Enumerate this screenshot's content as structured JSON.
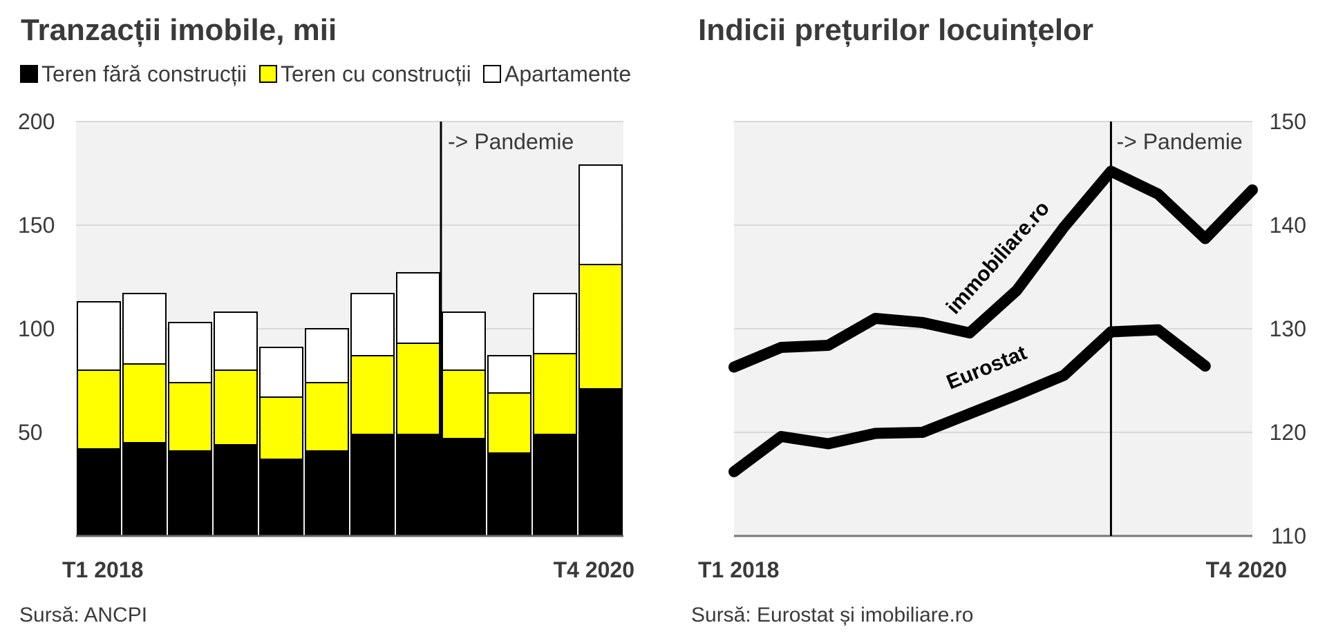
{
  "chart_data": [
    {
      "type": "bar",
      "stacked": true,
      "title": "Tranzacții imobile, mii",
      "categories": [
        "T1 2018",
        "T2 2018",
        "T3 2018",
        "T4 2018",
        "T1 2019",
        "T2 2019",
        "T3 2019",
        "T4 2019",
        "T1 2020",
        "T2 2020",
        "T3 2020",
        "T4 2020"
      ],
      "x_tick_labels": [
        "T1 2018",
        "T4 2020"
      ],
      "y_ticks": [
        50,
        100,
        150,
        200
      ],
      "ylim": [
        0,
        200
      ],
      "series": [
        {
          "name": "Teren fără construcții",
          "color": "#000000",
          "values": [
            42,
            45,
            41,
            44,
            37,
            41,
            49,
            49,
            47,
            40,
            49,
            71
          ]
        },
        {
          "name": "Teren cu construcții",
          "color": "#ffff00",
          "values": [
            38,
            38,
            33,
            36,
            30,
            33,
            38,
            44,
            33,
            29,
            39,
            60
          ]
        },
        {
          "name": "Apartamente",
          "color": "#ffffff",
          "values": [
            33,
            34,
            29,
            28,
            24,
            26,
            30,
            34,
            28,
            18,
            29,
            48
          ]
        }
      ],
      "annotation": {
        "label": "-> Pandemie",
        "between": [
          "T4 2019",
          "T1 2020"
        ]
      },
      "source": "Sursă: ANCPI",
      "plot_background": "#f2f2f2",
      "grid": true
    },
    {
      "type": "line",
      "title": "Indicii prețurilor locuințelor",
      "x": [
        "T1 2018",
        "T2 2018",
        "T3 2018",
        "T4 2018",
        "T1 2019",
        "T2 2019",
        "T3 2019",
        "T4 2019",
        "T1 2020",
        "T2 2020",
        "T3 2020",
        "T4 2020"
      ],
      "x_tick_labels": [
        "T1 2018",
        "T4 2020"
      ],
      "y_ticks": [
        110,
        120,
        130,
        140,
        150
      ],
      "ylim": [
        110,
        150
      ],
      "y_axis_side": "right",
      "series": [
        {
          "name": "immobiliare.ro",
          "color": "#000000",
          "values": [
            126.3,
            128.2,
            128.4,
            131.0,
            130.6,
            129.6,
            133.7,
            139.8,
            145.2,
            143.0,
            138.7,
            143.4
          ]
        },
        {
          "name": "Eurostat",
          "color": "#000000",
          "values": [
            116.2,
            119.6,
            118.9,
            119.9,
            120.0,
            121.8,
            123.6,
            125.5,
            129.7,
            129.9,
            126.4,
            null
          ]
        }
      ],
      "annotation": {
        "label": "-> Pandemie",
        "between": [
          "T4 2019",
          "T1 2020"
        ]
      },
      "source": "Sursă: Eurostat și imobiliare.ro",
      "plot_background": "#f2f2f2",
      "grid": true
    }
  ]
}
